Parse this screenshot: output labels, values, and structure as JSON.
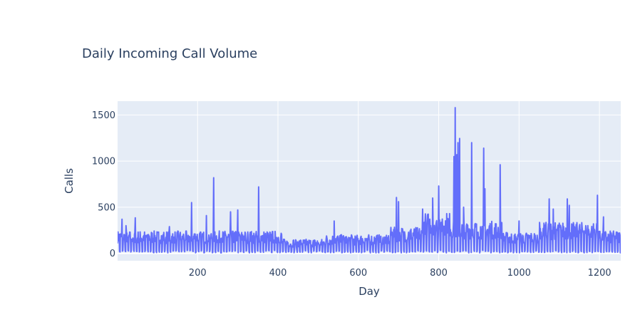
{
  "chart_data": {
    "type": "line",
    "title": "Daily Incoming Call Volume",
    "xlabel": "Day",
    "ylabel": "Calls",
    "xlim": [
      1,
      1253
    ],
    "ylim": [
      -80,
      1650
    ],
    "x_ticks": [
      200,
      400,
      600,
      800,
      1000,
      1200
    ],
    "y_ticks": [
      0,
      500,
      1000,
      1500
    ],
    "grid": true,
    "colors": {
      "line": "#636efa",
      "plot_bg": "#e5ecf6",
      "grid": "#ffffff",
      "text": "#2a3f5f"
    },
    "series": [
      {
        "name": "Calls",
        "spikes": [
          [
            12,
            370
          ],
          [
            22,
            300
          ],
          [
            45,
            385
          ],
          [
            130,
            290
          ],
          [
            185,
            550
          ],
          [
            222,
            410
          ],
          [
            240,
            820
          ],
          [
            282,
            450
          ],
          [
            300,
            470
          ],
          [
            352,
            720
          ],
          [
            540,
            350
          ],
          [
            695,
            605
          ],
          [
            700,
            560
          ],
          [
            760,
            480
          ],
          [
            785,
            600
          ],
          [
            800,
            730
          ],
          [
            838,
            1050
          ],
          [
            841,
            1580
          ],
          [
            845,
            1070
          ],
          [
            848,
            1200
          ],
          [
            852,
            1245
          ],
          [
            862,
            500
          ],
          [
            882,
            1200
          ],
          [
            912,
            1140
          ],
          [
            915,
            700
          ],
          [
            953,
            960
          ],
          [
            1000,
            350
          ],
          [
            1075,
            590
          ],
          [
            1085,
            480
          ],
          [
            1120,
            590
          ],
          [
            1125,
            520
          ],
          [
            1195,
            630
          ],
          [
            1210,
            395
          ]
        ]
      }
    ]
  }
}
